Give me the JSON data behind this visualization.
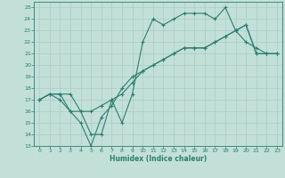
{
  "xlabel": "Humidex (Indice chaleur)",
  "bg_color": "#c2e0d8",
  "line_color": "#2a7f6f",
  "grid_color": "#a8cec6",
  "xlim": [
    -0.5,
    23.5
  ],
  "ylim": [
    13,
    25.5
  ],
  "yticks": [
    13,
    14,
    15,
    16,
    17,
    18,
    19,
    20,
    21,
    22,
    23,
    24,
    25
  ],
  "xticks": [
    0,
    1,
    2,
    3,
    4,
    5,
    6,
    7,
    8,
    9,
    10,
    11,
    12,
    13,
    14,
    15,
    16,
    17,
    18,
    19,
    20,
    21,
    22,
    23
  ],
  "line1_x": [
    0,
    1,
    2,
    3,
    4,
    5,
    6,
    7,
    8,
    9,
    10,
    11,
    12,
    13,
    14,
    15,
    16,
    17,
    18,
    19,
    20,
    21,
    22,
    23
  ],
  "line1_y": [
    17.0,
    17.5,
    17.0,
    16.0,
    16.0,
    14.0,
    14.0,
    17.0,
    15.0,
    17.5,
    22.0,
    24.0,
    23.5,
    24.0,
    24.5,
    24.5,
    24.5,
    24.0,
    25.0,
    23.0,
    22.0,
    21.5,
    21.0,
    21.0
  ],
  "line2_x": [
    0,
    1,
    2,
    3,
    4,
    5,
    6,
    7,
    8,
    9,
    10,
    11,
    12,
    13,
    14,
    15,
    16,
    17,
    18,
    19,
    20,
    21,
    22,
    23
  ],
  "line2_y": [
    17.0,
    17.5,
    17.5,
    17.5,
    16.0,
    16.0,
    16.5,
    17.0,
    17.5,
    18.5,
    19.5,
    20.0,
    20.5,
    21.0,
    21.5,
    21.5,
    21.5,
    22.0,
    22.5,
    23.0,
    23.5,
    21.0,
    21.0,
    21.0
  ],
  "line3_x": [
    0,
    1,
    2,
    3,
    4,
    5,
    6,
    7,
    8,
    9,
    10,
    11,
    12,
    13,
    14,
    15,
    16,
    17,
    18,
    19,
    20,
    21,
    22,
    23
  ],
  "line3_y": [
    17.0,
    17.5,
    17.5,
    16.0,
    15.0,
    13.0,
    15.5,
    16.5,
    18.0,
    19.0,
    19.5,
    20.0,
    20.5,
    21.0,
    21.5,
    21.5,
    21.5,
    22.0,
    22.5,
    23.0,
    23.5,
    21.0,
    21.0,
    21.0
  ]
}
